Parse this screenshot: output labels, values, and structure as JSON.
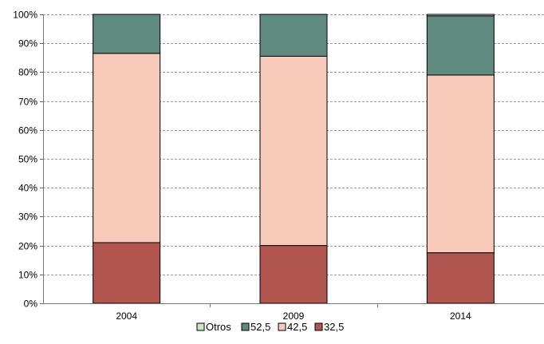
{
  "chart_data": {
    "type": "bar",
    "stacked": true,
    "percent": true,
    "categories": [
      "2004",
      "2009",
      "2014"
    ],
    "series": [
      {
        "name": "32,5",
        "color": "#b05550",
        "values": [
          21,
          20,
          17.5
        ]
      },
      {
        "name": "42,5",
        "color": "#f8c8b8",
        "values": [
          65.5,
          65.5,
          61.5
        ]
      },
      {
        "name": "52,5",
        "color": "#5f8a80",
        "values": [
          13.5,
          14.5,
          20.5
        ]
      },
      {
        "name": "Otros",
        "color": "#c8e6c0",
        "values": [
          0,
          0,
          0.5
        ]
      }
    ],
    "y_ticks": [
      "0%",
      "10%",
      "20%",
      "30%",
      "40%",
      "50%",
      "60%",
      "70%",
      "80%",
      "90%",
      "100%"
    ],
    "ylim": [
      0,
      100
    ],
    "grid": true,
    "legend_position": "bottom",
    "legend_order": [
      "Otros",
      "52,5",
      "42,5",
      "32,5"
    ]
  }
}
